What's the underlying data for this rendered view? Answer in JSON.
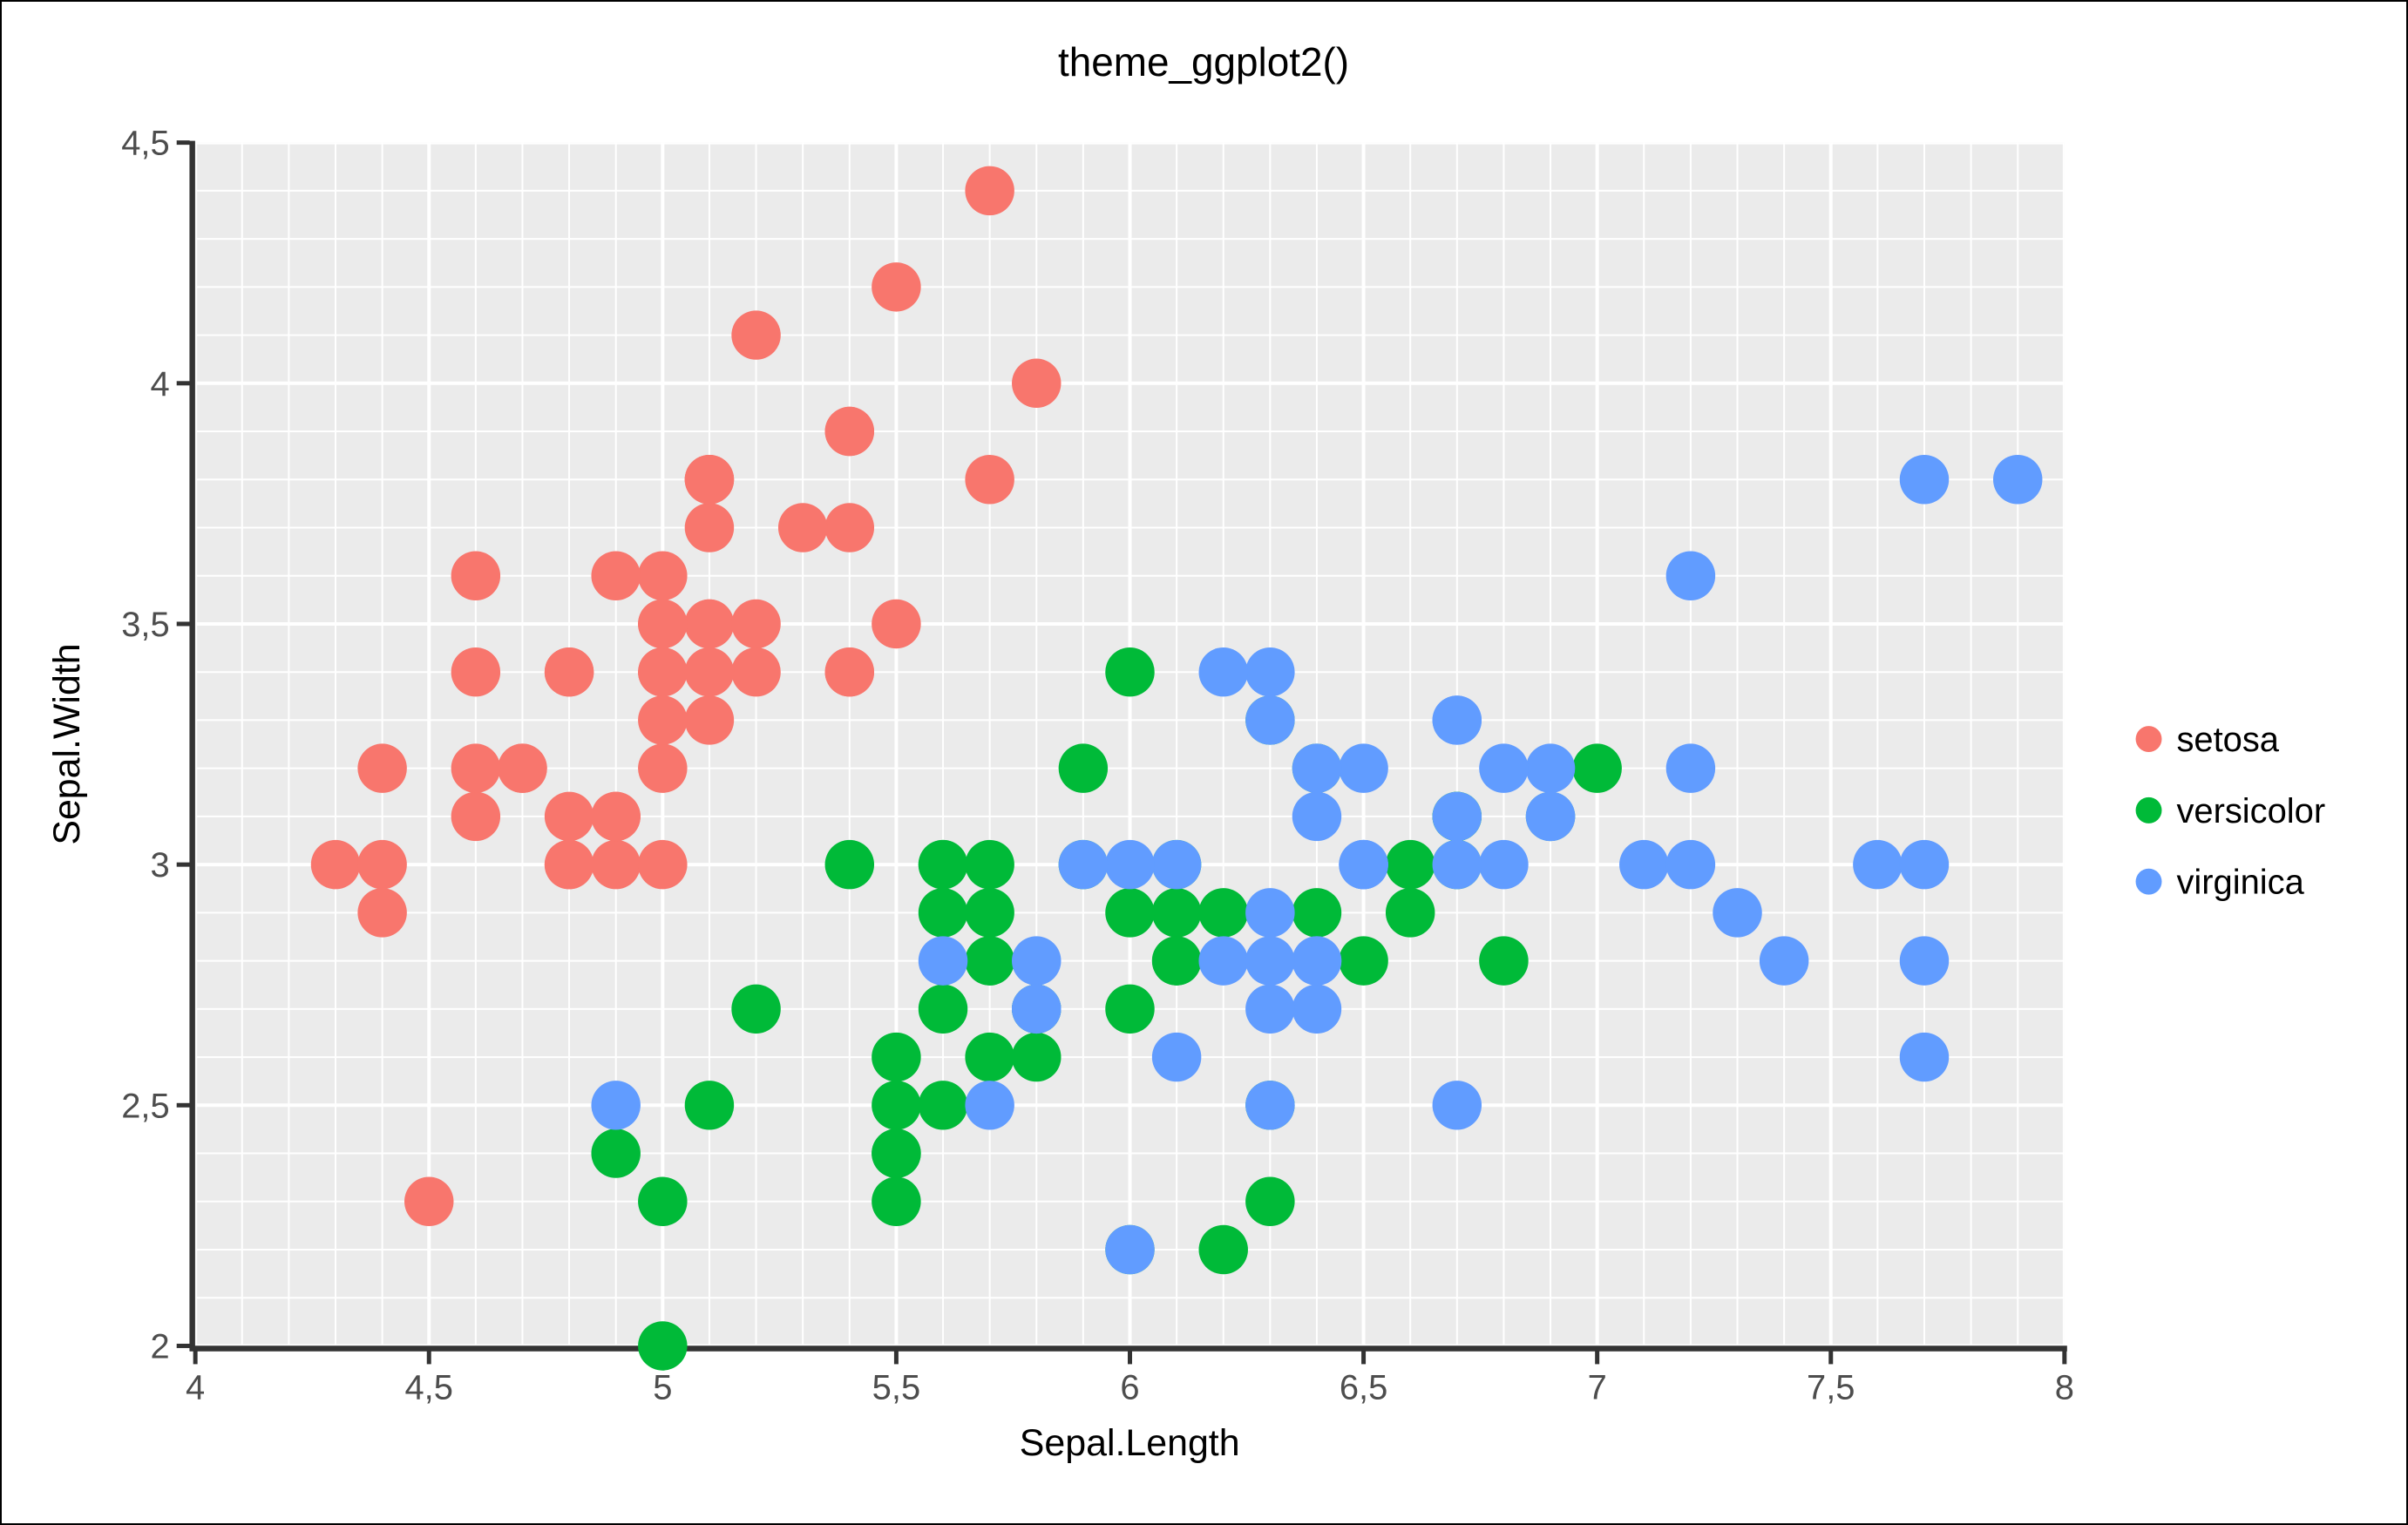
{
  "figure": {
    "border_color": "#000000",
    "background": "#FFFFFF"
  },
  "chart_data": {
    "type": "scatter",
    "title": "theme_ggplot2()",
    "xlabel": "Sepal.Length",
    "ylabel": "Sepal.Width",
    "xlim": [
      4,
      8
    ],
    "ylim": [
      2,
      4.5
    ],
    "x_ticks": [
      4,
      4.5,
      5,
      5.5,
      6,
      6.5,
      7,
      7.5,
      8
    ],
    "x_tick_labels": [
      "4",
      "4,5",
      "5",
      "5,5",
      "6",
      "6,5",
      "7",
      "7,5",
      "8"
    ],
    "y_ticks": [
      2,
      2.5,
      3,
      3.5,
      4,
      4.5
    ],
    "y_tick_labels": [
      "2",
      "2,5",
      "3",
      "3,5",
      "4",
      "4,5"
    ],
    "grid": {
      "major_step": 0.5,
      "minor_step": 0.1,
      "on": true
    },
    "legend_position": "right",
    "style": {
      "panel_bg": "#EBEBEB",
      "grid_color": "#FFFFFF",
      "axis_line_color": "#333333",
      "tick_mark_color": "#333333",
      "tick_label_color": "#4D4D4D",
      "point_radius": 28.3,
      "major_grid_width": 4,
      "minor_grid_width": 2
    },
    "series": [
      {
        "name": "setosa",
        "color": "#F8766D",
        "points": [
          [
            5.1,
            3.5
          ],
          [
            4.9,
            3.0
          ],
          [
            4.7,
            3.2
          ],
          [
            4.6,
            3.1
          ],
          [
            5.0,
            3.6
          ],
          [
            5.4,
            3.9
          ],
          [
            4.6,
            3.4
          ],
          [
            5.0,
            3.4
          ],
          [
            4.4,
            2.9
          ],
          [
            4.9,
            3.1
          ],
          [
            5.4,
            3.7
          ],
          [
            4.8,
            3.4
          ],
          [
            4.8,
            3.0
          ],
          [
            4.3,
            3.0
          ],
          [
            5.8,
            4.0
          ],
          [
            5.7,
            4.4
          ],
          [
            5.4,
            3.9
          ],
          [
            5.1,
            3.5
          ],
          [
            5.7,
            3.8
          ],
          [
            5.1,
            3.8
          ],
          [
            5.4,
            3.4
          ],
          [
            5.1,
            3.7
          ],
          [
            4.6,
            3.6
          ],
          [
            5.1,
            3.3
          ],
          [
            4.8,
            3.4
          ],
          [
            5.0,
            3.0
          ],
          [
            5.0,
            3.4
          ],
          [
            5.2,
            3.5
          ],
          [
            5.2,
            3.4
          ],
          [
            4.7,
            3.2
          ],
          [
            4.8,
            3.1
          ],
          [
            5.4,
            3.4
          ],
          [
            5.2,
            4.1
          ],
          [
            5.5,
            4.2
          ],
          [
            4.9,
            3.1
          ],
          [
            5.0,
            3.2
          ],
          [
            5.5,
            3.5
          ],
          [
            4.9,
            3.6
          ],
          [
            4.4,
            3.0
          ],
          [
            5.1,
            3.4
          ],
          [
            5.0,
            3.5
          ],
          [
            4.5,
            2.3
          ],
          [
            4.4,
            3.2
          ],
          [
            5.0,
            3.5
          ],
          [
            5.1,
            3.8
          ],
          [
            4.8,
            3.0
          ],
          [
            5.1,
            3.8
          ],
          [
            4.6,
            3.2
          ],
          [
            5.3,
            3.7
          ],
          [
            5.0,
            3.3
          ]
        ]
      },
      {
        "name": "versicolor",
        "color": "#00BA38",
        "points": [
          [
            7.0,
            3.2
          ],
          [
            6.4,
            3.2
          ],
          [
            6.9,
            3.1
          ],
          [
            5.5,
            2.3
          ],
          [
            6.5,
            2.8
          ],
          [
            5.7,
            2.8
          ],
          [
            6.3,
            3.3
          ],
          [
            4.9,
            2.4
          ],
          [
            6.6,
            2.9
          ],
          [
            5.2,
            2.7
          ],
          [
            5.0,
            2.0
          ],
          [
            5.9,
            3.0
          ],
          [
            6.0,
            2.2
          ],
          [
            6.1,
            2.9
          ],
          [
            5.6,
            2.9
          ],
          [
            6.7,
            3.1
          ],
          [
            5.6,
            3.0
          ],
          [
            5.8,
            2.7
          ],
          [
            6.2,
            2.2
          ],
          [
            5.6,
            2.5
          ],
          [
            5.9,
            3.2
          ],
          [
            6.1,
            2.8
          ],
          [
            6.3,
            2.5
          ],
          [
            6.1,
            2.8
          ],
          [
            6.4,
            2.9
          ],
          [
            6.6,
            3.0
          ],
          [
            6.8,
            2.8
          ],
          [
            6.7,
            3.0
          ],
          [
            6.0,
            2.9
          ],
          [
            5.7,
            2.6
          ],
          [
            5.5,
            2.4
          ],
          [
            5.5,
            2.4
          ],
          [
            5.8,
            2.7
          ],
          [
            6.0,
            2.7
          ],
          [
            5.4,
            3.0
          ],
          [
            6.0,
            3.4
          ],
          [
            6.7,
            3.1
          ],
          [
            6.3,
            2.3
          ],
          [
            5.6,
            3.0
          ],
          [
            5.5,
            2.5
          ],
          [
            5.5,
            2.6
          ],
          [
            6.1,
            3.0
          ],
          [
            5.8,
            2.6
          ],
          [
            5.0,
            2.3
          ],
          [
            5.6,
            2.7
          ],
          [
            5.7,
            3.0
          ],
          [
            5.7,
            2.9
          ],
          [
            6.2,
            2.9
          ],
          [
            5.1,
            2.5
          ],
          [
            5.7,
            2.8
          ]
        ]
      },
      {
        "name": "virginica",
        "color": "#619CFF",
        "points": [
          [
            6.3,
            3.3
          ],
          [
            5.8,
            2.7
          ],
          [
            7.1,
            3.0
          ],
          [
            6.3,
            2.9
          ],
          [
            6.5,
            3.0
          ],
          [
            7.6,
            3.0
          ],
          [
            4.9,
            2.5
          ],
          [
            7.3,
            2.9
          ],
          [
            6.7,
            2.5
          ],
          [
            7.2,
            3.6
          ],
          [
            6.5,
            3.2
          ],
          [
            6.4,
            2.7
          ],
          [
            6.8,
            3.0
          ],
          [
            5.7,
            2.5
          ],
          [
            5.8,
            2.8
          ],
          [
            6.4,
            3.2
          ],
          [
            6.5,
            3.0
          ],
          [
            7.7,
            3.8
          ],
          [
            7.7,
            2.6
          ],
          [
            6.0,
            2.2
          ],
          [
            6.9,
            3.2
          ],
          [
            5.6,
            2.8
          ],
          [
            7.7,
            2.8
          ],
          [
            6.3,
            2.7
          ],
          [
            6.7,
            3.3
          ],
          [
            7.2,
            3.2
          ],
          [
            6.2,
            2.8
          ],
          [
            6.1,
            3.0
          ],
          [
            6.4,
            2.8
          ],
          [
            7.2,
            3.0
          ],
          [
            7.4,
            2.8
          ],
          [
            7.9,
            3.8
          ],
          [
            6.4,
            2.8
          ],
          [
            6.3,
            2.8
          ],
          [
            6.1,
            2.6
          ],
          [
            7.7,
            3.0
          ],
          [
            6.3,
            3.4
          ],
          [
            6.4,
            3.1
          ],
          [
            6.0,
            3.0
          ],
          [
            6.9,
            3.1
          ],
          [
            6.7,
            3.1
          ],
          [
            6.9,
            3.1
          ],
          [
            5.8,
            2.7
          ],
          [
            6.8,
            3.2
          ],
          [
            6.7,
            3.3
          ],
          [
            6.7,
            3.0
          ],
          [
            6.3,
            2.5
          ],
          [
            6.5,
            3.0
          ],
          [
            6.2,
            3.4
          ],
          [
            5.9,
            3.0
          ]
        ]
      }
    ]
  },
  "legend": {
    "items": [
      {
        "label": "setosa",
        "color": "#F8766D"
      },
      {
        "label": "versicolor",
        "color": "#00BA38"
      },
      {
        "label": "virginica",
        "color": "#619CFF"
      }
    ]
  }
}
